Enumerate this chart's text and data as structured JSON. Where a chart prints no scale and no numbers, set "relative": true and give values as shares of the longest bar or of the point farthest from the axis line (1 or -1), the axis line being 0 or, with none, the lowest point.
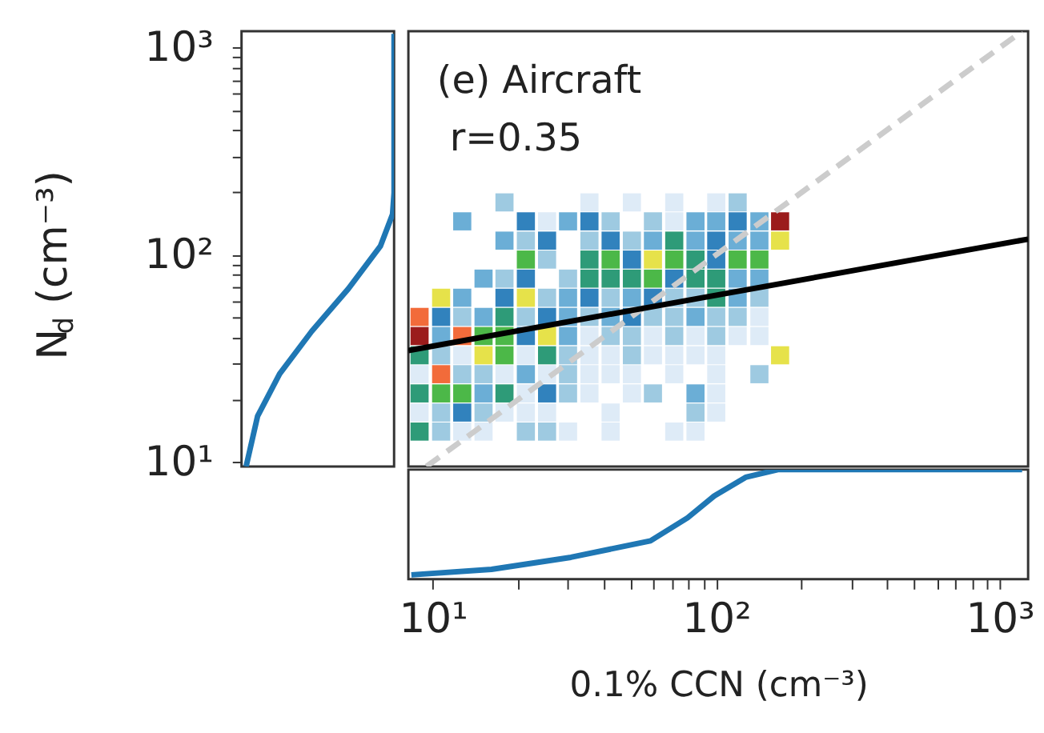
{
  "chart_data": [
    {
      "type": "line",
      "orientation": "horizontal",
      "ylabel": "N$_{d}$ (cm⁻³)",
      "log": "y",
      "relative": true,
      "tick_labels": "y",
      "ylim": [
        9.5,
        1200
      ],
      "yticks": [
        {
          "value": 10,
          "label": "10¹"
        },
        {
          "value": 20,
          "label": null
        },
        {
          "value": 30,
          "label": null
        },
        {
          "value": 40,
          "label": null
        },
        {
          "value": 50,
          "label": null
        },
        {
          "value": 60,
          "label": null
        },
        {
          "value": 70,
          "label": null
        },
        {
          "value": 80,
          "label": null
        },
        {
          "value": 90,
          "label": null
        },
        {
          "value": 100,
          "label": "10²"
        },
        {
          "value": 200,
          "label": null
        },
        {
          "value": 300,
          "label": null
        },
        {
          "value": 400,
          "label": null
        },
        {
          "value": 500,
          "label": null
        },
        {
          "value": 600,
          "label": null
        },
        {
          "value": 700,
          "label": null
        },
        {
          "value": 800,
          "label": null
        },
        {
          "value": 900,
          "label": null
        },
        {
          "value": 1000,
          "label": "10³"
        }
      ],
      "series": [
        {
          "color": "#1f77b4",
          "values": [
            0.03,
            0.105,
            0.25,
            0.46,
            0.7,
            0.91,
            0.99,
            1,
            1
          ],
          "x": [
            9.5,
            16.6,
            26.6,
            42.7,
            68.5,
            110,
            157,
            199,
            1167
          ]
        }
      ]
    },
    {
      "type": "scatter",
      "log": "xy",
      "tick_labels": false,
      "xlim": [
        8.2,
        1260
      ],
      "ylim": [
        9.5,
        1200
      ],
      "annotations": [
        "(e) Aircraft",
        "r=0.35"
      ],
      "series": [
        {
          "type": "scatter",
          "marker": "square",
          "x": [
            17.9,
            35.7,
            50.4,
            71.1,
            100,
            119
          ],
          "values": [
            179,
            179,
            179,
            179,
            179,
            179
          ],
          "colors": [
            "#9ecae1",
            "#deebf7",
            "#deebf7",
            "#deebf7",
            "#deebf7",
            "#9ecae1"
          ]
        },
        {
          "type": "scatter",
          "marker": "square",
          "x": [
            12.7,
            21.3,
            25.3,
            30.0,
            35.7,
            42.4,
            59.8,
            71.1,
            84.5,
            100,
            119,
            142,
            168
          ],
          "values": [
            145,
            145,
            145,
            145,
            145,
            145,
            145,
            145,
            145,
            145,
            145,
            145,
            145
          ],
          "colors": [
            "#6baed6",
            "#3182bd",
            "#deebf7",
            "#6baed6",
            "#3182bd",
            "#9ecae1",
            "#9ecae1",
            "#deebf7",
            "#6baed6",
            "#6baed6",
            "#3182bd",
            "#6baed6",
            "#9b1c1c"
          ]
        },
        {
          "type": "scatter",
          "marker": "square",
          "x": [
            17.9,
            21.3,
            25.3,
            35.7,
            42.4,
            50.4,
            59.8,
            71.1,
            84.5,
            100,
            119,
            142,
            168
          ],
          "values": [
            117,
            117,
            117,
            117,
            117,
            117,
            117,
            117,
            117,
            117,
            117,
            117,
            117
          ],
          "colors": [
            "#6baed6",
            "#9ecae1",
            "#3182bd",
            "#9ecae1",
            "#3182bd",
            "#9ecae1",
            "#6baed6",
            "#2e9b78",
            "#6baed6",
            "#3182bd",
            "#6baed6",
            "#6baed6",
            "#e6e24a"
          ]
        },
        {
          "type": "scatter",
          "marker": "square",
          "x": [
            21.3,
            25.3,
            35.7,
            42.4,
            50.4,
            59.8,
            71.1,
            84.5,
            100,
            119,
            142
          ],
          "values": [
            94.8,
            94.8,
            94.8,
            94.8,
            94.8,
            94.8,
            94.8,
            94.8,
            94.8,
            94.8,
            94.8
          ],
          "colors": [
            "#4cb848",
            "#9ecae1",
            "#2e9b78",
            "#4cb848",
            "#3182bd",
            "#e6e24a",
            "#4cb848",
            "#2e9b78",
            "#3182bd",
            "#4cb848",
            "#4cb848"
          ]
        },
        {
          "type": "scatter",
          "marker": "square",
          "x": [
            15.1,
            17.9,
            21.3,
            30.0,
            35.7,
            42.4,
            50.4,
            59.8,
            71.1,
            84.5,
            100,
            119,
            142
          ],
          "values": [
            76.7,
            76.7,
            76.7,
            76.7,
            76.7,
            76.7,
            76.7,
            76.7,
            76.7,
            76.7,
            76.7,
            76.7,
            76.7
          ],
          "colors": [
            "#6baed6",
            "#9ecae1",
            "#3182bd",
            "#9ecae1",
            "#2e9b78",
            "#2e9b78",
            "#2e9b78",
            "#4cb848",
            "#3182bd",
            "#2e9b78",
            "#2e9b78",
            "#6baed6",
            "#6baed6"
          ]
        },
        {
          "type": "scatter",
          "marker": "square",
          "x": [
            10.7,
            12.7,
            17.9,
            21.3,
            25.3,
            30.0,
            35.7,
            42.4,
            50.4,
            59.8,
            71.1,
            84.5,
            100,
            119,
            142
          ],
          "values": [
            62.0,
            62.0,
            62.0,
            62.0,
            62.0,
            62.0,
            62.0,
            62.0,
            62.0,
            62.0,
            62.0,
            62.0,
            62.0,
            62.0,
            62.0
          ],
          "colors": [
            "#e6e24a",
            "#6baed6",
            "#3182bd",
            "#e6e24a",
            "#9ecae1",
            "#6baed6",
            "#3182bd",
            "#9ecae1",
            "#6baed6",
            "#3182bd",
            "#9ecae1",
            "#9ecae1",
            "#2e9b78",
            "#6baed6",
            "#9ecae1"
          ]
        },
        {
          "type": "scatter",
          "marker": "square",
          "x": [
            8.98,
            10.7,
            12.7,
            15.1,
            17.9,
            21.3,
            25.3,
            30.0,
            35.7,
            42.4,
            50.4,
            59.8,
            71.1,
            84.5,
            100,
            119,
            142
          ],
          "values": [
            50.1,
            50.1,
            50.1,
            50.1,
            50.1,
            50.1,
            50.1,
            50.1,
            50.1,
            50.1,
            50.1,
            50.1,
            50.1,
            50.1,
            50.1,
            50.1,
            50.1
          ],
          "colors": [
            "#f26b3a",
            "#3182bd",
            "#9ecae1",
            "#6baed6",
            "#2e9b78",
            "#9ecae1",
            "#3182bd",
            "#6baed6",
            "#9ecae1",
            "#6baed6",
            "#3182bd",
            "#9ecae1",
            "#9ecae1",
            "#6baed6",
            "#9ecae1",
            "#9ecae1",
            "#deebf7"
          ]
        },
        {
          "type": "scatter",
          "marker": "square",
          "x": [
            8.98,
            10.7,
            12.7,
            15.1,
            17.9,
            21.3,
            25.3,
            30.0,
            35.7,
            42.4,
            50.4,
            59.8,
            71.1,
            84.5,
            100,
            119,
            142
          ],
          "values": [
            40.5,
            40.5,
            40.5,
            40.5,
            40.5,
            40.5,
            40.5,
            40.5,
            40.5,
            40.5,
            40.5,
            40.5,
            40.5,
            40.5,
            40.5,
            40.5,
            40.5
          ],
          "colors": [
            "#9b1c1c",
            "#6baed6",
            "#f26b3a",
            "#4cb848",
            "#4cb848",
            "#3182bd",
            "#e6e24a",
            "#6baed6",
            "#deebf7",
            "#9ecae1",
            "#9ecae1",
            "#deebf7",
            "#9ecae1",
            "#deebf7",
            "#9ecae1",
            "#deebf7",
            "#deebf7"
          ]
        },
        {
          "type": "scatter",
          "marker": "square",
          "x": [
            8.98,
            10.7,
            12.7,
            15.1,
            17.9,
            21.3,
            25.3,
            30.0,
            35.7,
            42.4,
            50.4,
            59.8,
            71.1,
            84.5,
            100,
            168
          ],
          "values": [
            32.7,
            32.7,
            32.7,
            32.7,
            32.7,
            32.7,
            32.7,
            32.7,
            32.7,
            32.7,
            32.7,
            32.7,
            32.7,
            32.7,
            32.7,
            32.7
          ],
          "colors": [
            "#2e9b78",
            "#9ecae1",
            "#deebf7",
            "#e6e24a",
            "#4cb848",
            "#deebf7",
            "#2e9b78",
            "#9ecae1",
            "#deebf7",
            "#deebf7",
            "#9ecae1",
            "#deebf7",
            "#deebf7",
            "#deebf7",
            "#deebf7",
            "#e6e24a"
          ]
        },
        {
          "type": "scatter",
          "marker": "square",
          "x": [
            8.98,
            10.7,
            12.7,
            15.1,
            17.9,
            21.3,
            25.3,
            30.0,
            35.7,
            42.4,
            50.4,
            71.1,
            100,
            142
          ],
          "values": [
            26.5,
            26.5,
            26.5,
            26.5,
            26.5,
            26.5,
            26.5,
            26.5,
            26.5,
            26.5,
            26.5,
            26.5,
            26.5,
            26.5
          ],
          "colors": [
            "#deebf7",
            "#f26b3a",
            "#9ecae1",
            "#9ecae1",
            "#deebf7",
            "#6baed6",
            "#deebf7",
            "#9ecae1",
            "#deebf7",
            "#deebf7",
            "#deebf7",
            "#deebf7",
            "#deebf7",
            "#9ecae1"
          ]
        },
        {
          "type": "scatter",
          "marker": "square",
          "x": [
            8.98,
            10.7,
            12.7,
            15.1,
            17.9,
            21.3,
            25.3,
            30.0,
            35.7,
            50.4,
            59.8,
            84.5,
            100
          ],
          "values": [
            21.4,
            21.4,
            21.4,
            21.4,
            21.4,
            21.4,
            21.4,
            21.4,
            21.4,
            21.4,
            21.4,
            21.4,
            21.4
          ],
          "colors": [
            "#2e9b78",
            "#4cb848",
            "#4cb848",
            "#6baed6",
            "#2e9b78",
            "#deebf7",
            "#3182bd",
            "#9ecae1",
            "#deebf7",
            "#deebf7",
            "#9ecae1",
            "#6baed6",
            "#deebf7"
          ]
        },
        {
          "type": "scatter",
          "marker": "square",
          "x": [
            8.98,
            10.7,
            12.7,
            15.1,
            17.9,
            21.3,
            25.3,
            42.4,
            84.5,
            100
          ],
          "values": [
            17.3,
            17.3,
            17.3,
            17.3,
            17.3,
            17.3,
            17.3,
            17.3,
            17.3,
            17.3
          ],
          "colors": [
            "#deebf7",
            "#9ecae1",
            "#3182bd",
            "#9ecae1",
            "#deebf7",
            "#deebf7",
            "#deebf7",
            "#deebf7",
            "#9ecae1",
            "#deebf7"
          ]
        },
        {
          "type": "scatter",
          "marker": "square",
          "x": [
            8.98,
            10.7,
            12.7,
            15.1,
            21.3,
            25.3,
            30.0,
            42.4,
            71.1,
            84.5
          ],
          "values": [
            14.0,
            14.0,
            14.0,
            14.0,
            14.0,
            14.0,
            14.0,
            14.0,
            14.0,
            14.0
          ],
          "colors": [
            "#2e9b78",
            "#9ecae1",
            "#deebf7",
            "#deebf7",
            "#9ecae1",
            "#9ecae1",
            "#deebf7",
            "#deebf7",
            "#deebf7",
            "#deebf7"
          ]
        },
        {
          "type": "line",
          "color": "#cccccc",
          "line_style": "dashed",
          "x": [
            9.5,
            1200
          ],
          "values": [
            9.5,
            1200
          ]
        },
        {
          "type": "line",
          "color": "#000000",
          "x": [
            8.2,
            1260
          ],
          "values": [
            34.5,
            119
          ]
        }
      ]
    },
    {
      "type": "line",
      "xlabel": "0.1% CCN (cm⁻³)",
      "log": "x",
      "relative": true,
      "tick_labels": "x",
      "xlim": [
        8.2,
        1260
      ],
      "xticks": [
        {
          "value": 10,
          "label": "10¹"
        },
        {
          "value": 20,
          "label": null
        },
        {
          "value": 30,
          "label": null
        },
        {
          "value": 40,
          "label": null
        },
        {
          "value": 50,
          "label": null
        },
        {
          "value": 60,
          "label": null
        },
        {
          "value": 70,
          "label": null
        },
        {
          "value": 80,
          "label": null
        },
        {
          "value": 90,
          "label": null
        },
        {
          "value": 100,
          "label": "10²"
        },
        {
          "value": 200,
          "label": null
        },
        {
          "value": 300,
          "label": null
        },
        {
          "value": 400,
          "label": null
        },
        {
          "value": 500,
          "label": null
        },
        {
          "value": 600,
          "label": null
        },
        {
          "value": 700,
          "label": null
        },
        {
          "value": 800,
          "label": null
        },
        {
          "value": 900,
          "label": null
        },
        {
          "value": 1000,
          "label": "10³"
        }
      ],
      "series": [
        {
          "color": "#1f77b4",
          "x": [
            8.4,
            16.1,
            30.7,
            58.6,
            79.2,
            98.4,
            127,
            165,
            1200
          ],
          "values": [
            0.04,
            0.09,
            0.2,
            0.35,
            0.56,
            0.76,
            0.93,
            1,
            1
          ]
        }
      ]
    }
  ]
}
